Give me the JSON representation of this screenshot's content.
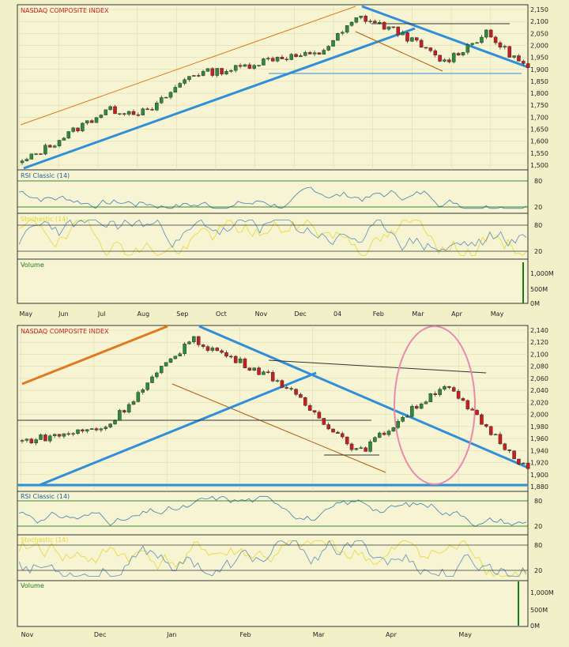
{
  "colors": {
    "background": "#f2f0c9",
    "panel_bg": "#f6f4d2",
    "grid": "#dcd9a6",
    "up_candle": "#2e8b3a",
    "down_candle": "#c81e1e",
    "trend_blue": "#2f8fd8",
    "channel_orange": "#e07a20",
    "rsi_line": "#3f7fb0",
    "stoch_yellow": "#e8d830",
    "stoch_blue": "#5a8fc0",
    "oval_pink": "#e88ab0",
    "panel_label": "#c01010",
    "rsi_label": "#1d5fa0",
    "volume_label": "#1a7a1a",
    "level_line": "#006400"
  },
  "chart_data": [
    {
      "type": "candlestick",
      "title": "NASDAQ COMPOSITE INDEX",
      "x_tick_labels": [
        "May",
        "Jun",
        "Jul",
        "Aug",
        "Sep",
        "Oct",
        "Nov",
        "Dec",
        "04",
        "Feb",
        "Mar",
        "Apr",
        "May"
      ],
      "y_tick_labels": [
        "2,150",
        "2,100",
        "2,050",
        "2,000",
        "1,950",
        "1,900",
        "1,850",
        "1,800",
        "1,750",
        "1,700",
        "1,650",
        "1,600",
        "1,550",
        "1,500"
      ],
      "ylim": [
        1500,
        2150
      ],
      "series_description_points": [
        {
          "x": "May 2003",
          "close": 1510
        },
        {
          "x": "Jun 2003",
          "close": 1620
        },
        {
          "x": "Jul 2003",
          "close": 1730
        },
        {
          "x": "Aug 2003",
          "close": 1720
        },
        {
          "x": "Sep 2003",
          "close": 1880
        },
        {
          "x": "Oct 2003",
          "close": 1900
        },
        {
          "x": "Nov 2003",
          "close": 1950
        },
        {
          "x": "Dec 2003",
          "close": 1960
        },
        {
          "x": "Jan 2004",
          "close": 2120
        },
        {
          "x": "Feb 2004",
          "close": 2050
        },
        {
          "x": "Mar 2004",
          "close": 1930
        },
        {
          "x": "Apr 2004",
          "close": 2050
        },
        {
          "x": "May 2004",
          "close": 1900
        }
      ],
      "indicators": [
        {
          "name": "RSI Classic (14)",
          "levels": [
            "80",
            "20"
          ]
        },
        {
          "name": "Stochastic (14)",
          "levels": [
            "80",
            "20"
          ]
        },
        {
          "name": "Volume",
          "tick_labels": [
            "1,000M",
            "500M",
            "0M"
          ]
        }
      ]
    },
    {
      "type": "candlestick",
      "title": "NASDAQ COMPOSITE INDEX",
      "x_tick_labels": [
        "Nov",
        "Dec",
        "Jan",
        "Feb",
        "Mar",
        "Apr",
        "May"
      ],
      "y_tick_labels": [
        "2,140",
        "2,120",
        "2,100",
        "2,080",
        "2,060",
        "2,040",
        "2,020",
        "2,000",
        "1,980",
        "1,960",
        "1,940",
        "1,920",
        "1,900",
        "1,880"
      ],
      "ylim": [
        1870,
        2145
      ],
      "series_description_points": [
        {
          "x": "Nov 2003",
          "close": 1950
        },
        {
          "x": "Dec 2003",
          "close": 1975
        },
        {
          "x": "Jan 2004",
          "close": 2130
        },
        {
          "x": "Feb 2004",
          "close": 2060
        },
        {
          "x": "Mar 2004",
          "close": 1930
        },
        {
          "x": "Apr 2004",
          "close": 2050
        },
        {
          "x": "May 2004",
          "close": 1900
        }
      ],
      "indicators": [
        {
          "name": "RSI Classic (14)",
          "levels": [
            "80",
            "20"
          ]
        },
        {
          "name": "Stochastic (14)",
          "levels": [
            "80",
            "20"
          ]
        },
        {
          "name": "Volume",
          "tick_labels": [
            "1,000M",
            "500M",
            "0M"
          ]
        }
      ]
    }
  ]
}
